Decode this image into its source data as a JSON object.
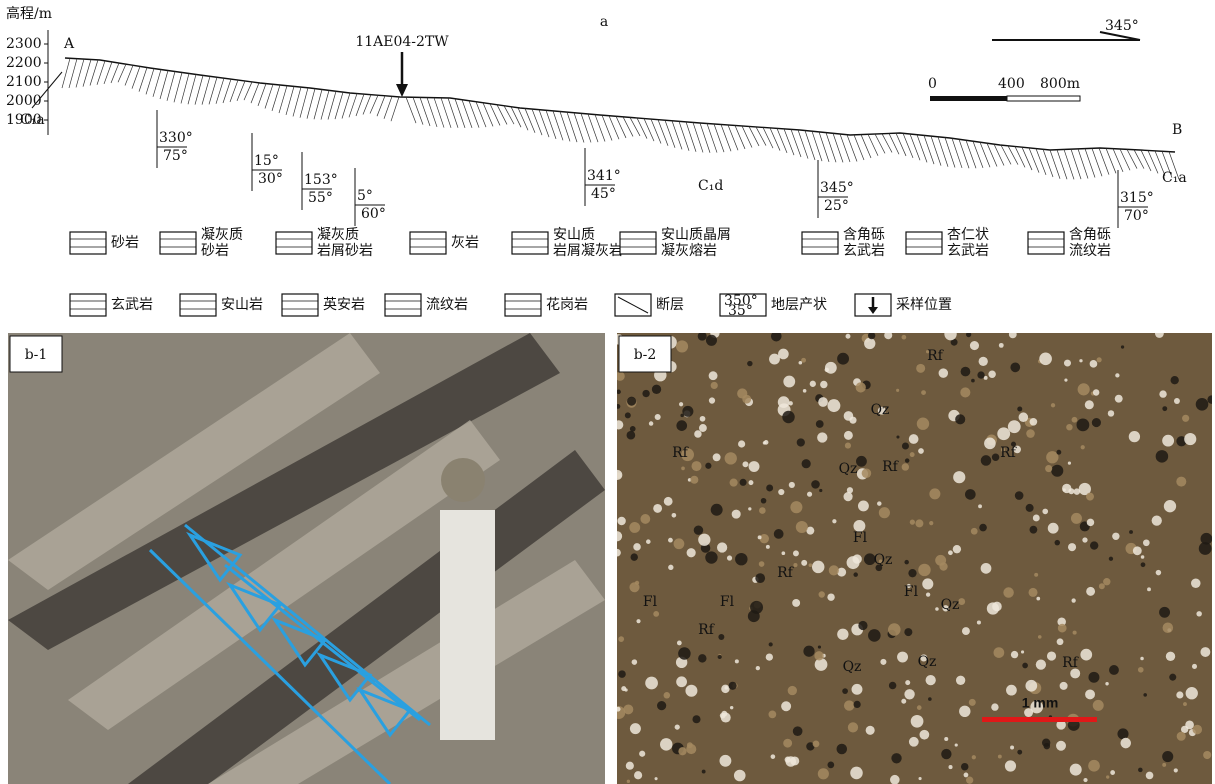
{
  "section": {
    "label": "a",
    "axis_label": "高程/m",
    "elevation_ticks": [
      2300,
      2200,
      2100,
      2000,
      1900
    ],
    "end_left": "A",
    "end_right": "B",
    "sample": "11AE04-2TW",
    "units": [
      "C₁a",
      "C₁d",
      "C₁a"
    ],
    "attitudes": [
      [
        "330°",
        "75°"
      ],
      [
        "15°",
        "30°"
      ],
      [
        "153°",
        "55°"
      ],
      [
        "5°",
        "60°"
      ],
      [
        "341°",
        "45°"
      ],
      [
        "345°",
        "25°"
      ],
      [
        "315°",
        "70°"
      ]
    ],
    "north": "345°",
    "scale": [
      "0",
      "400",
      "800m"
    ]
  },
  "legend": [
    {
      "lines": [
        "砂岩"
      ]
    },
    {
      "lines": [
        "凝灰质",
        "砂岩"
      ]
    },
    {
      "lines": [
        "凝灰质",
        "岩屑砂岩"
      ]
    },
    {
      "lines": [
        "灰岩"
      ]
    },
    {
      "lines": [
        "安山质",
        "岩屑凝灰岩"
      ]
    },
    {
      "lines": [
        "安山质晶屑",
        "凝灰熔岩"
      ]
    },
    {
      "lines": [
        "含角砾",
        "玄武岩"
      ]
    },
    {
      "lines": [
        "杏仁状",
        "玄武岩"
      ]
    },
    {
      "lines": [
        "含角砾",
        "流纹岩"
      ]
    },
    {
      "lines": [
        "玄武岩"
      ]
    },
    {
      "lines": [
        "安山岩"
      ]
    },
    {
      "lines": [
        "英安岩"
      ]
    },
    {
      "lines": [
        "流纹岩"
      ]
    },
    {
      "lines": [
        "花岗岩"
      ]
    },
    {
      "lines": [
        "断层"
      ]
    },
    {
      "icon_text": [
        "350°",
        "35°"
      ],
      "lines": [
        "地层产状"
      ]
    },
    {
      "lines": [
        "采样位置"
      ]
    }
  ],
  "photos": [
    {
      "label": "b-1"
    },
    {
      "label": "b-2",
      "annotations": [
        "Rf",
        "Qz",
        "Rf",
        "Rf",
        "Qz",
        "Rf",
        "Fl",
        "Qz",
        "Rf",
        "Fl",
        "Fl",
        "Fl",
        "Qz",
        "Rf",
        "Qz",
        "Qz",
        "Rf"
      ],
      "scale_bar": "1 mm"
    }
  ]
}
